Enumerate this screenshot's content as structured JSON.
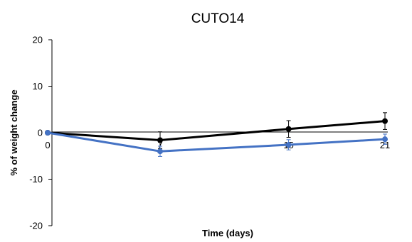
{
  "chart_data": {
    "type": "line",
    "title": "CUTO14",
    "xlabel": "Time (days)",
    "ylabel": "% of weight change",
    "x": [
      0,
      7,
      15,
      21
    ],
    "x_tick_labels": [
      "0",
      "7",
      "15",
      "21"
    ],
    "y_ticks": [
      20,
      10,
      0,
      -10,
      -20
    ],
    "ylim": [
      -20,
      20
    ],
    "grid": false,
    "legend": "none",
    "series": [
      {
        "color": "#000000",
        "values": [
          0,
          -1.6,
          0.8,
          2.5
        ],
        "errors": [
          0,
          1.8,
          1.8,
          1.8
        ]
      },
      {
        "color": "#4472C4",
        "values": [
          0,
          -4.0,
          -2.6,
          -1.4
        ],
        "errors": [
          0,
          1.1,
          1.1,
          1.1
        ]
      }
    ]
  }
}
